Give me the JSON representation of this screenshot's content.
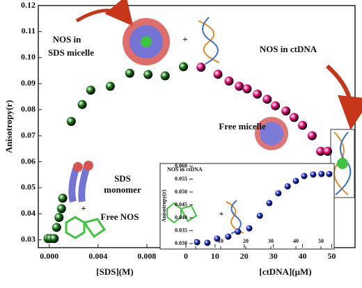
{
  "chart_data": [
    {
      "type": "scatter",
      "y_label": "Anisotropy(r)",
      "ylim": [
        0.027,
        0.12
      ],
      "yticks": [
        0.03,
        0.04,
        0.05,
        0.06,
        0.07,
        0.08,
        0.09,
        {
          "value": 0.1,
          "label": "0.10"
        },
        0.11,
        0.12
      ],
      "panels": [
        {
          "x_label": "[SDS](M)",
          "xlim": [
            -0.0009,
            0.0112
          ],
          "xticks": [
            {
              "value": 0,
              "label": "0.000"
            },
            {
              "value": 0.004,
              "label": "0.004"
            },
            {
              "value": 0.008,
              "label": "0.008"
            }
          ],
          "series": [
            {
              "color": "#1d7d1d",
              "x": [
                -0.0001,
                0.0001,
                0.0004,
                0.0006,
                0.0008,
                0.001,
                0.0011,
                0.0018,
                0.0027,
                0.0034,
                0.005,
                0.0066,
                0.0081,
                0.0095,
                0.011
              ],
              "values": [
                0.0305,
                0.0305,
                0.0305,
                0.0348,
                0.0386,
                0.042,
                0.046,
                0.0755,
                0.082,
                0.0875,
                0.089,
                0.094,
                0.0935,
                0.093,
                0.0965
              ]
            }
          ]
        },
        {
          "x_label": "[ctDNA](μM)",
          "xlim": [
            0,
            58
          ],
          "xticks": [
            0,
            10,
            20,
            30,
            40,
            50
          ],
          "series": [
            {
              "color": "#e8137c",
              "x": [
                5.2,
                11,
                14.8,
                18.3,
                21,
                24.5,
                27.9,
                30.7,
                34.3,
                37.1,
                40,
                43.3,
                46.2,
                48.6
              ],
              "values": [
                0.0963,
                0.0936,
                0.091,
                0.089,
                0.088,
                0.086,
                0.084,
                0.0815,
                0.0795,
                0.077,
                0.074,
                0.07,
                0.064,
                0.064
              ]
            }
          ]
        }
      ],
      "annotations": [
        "NOS in",
        "SDS micelle",
        "+",
        "NOS in ctDNA",
        "Free micelle",
        "SDS",
        "monomer",
        "+",
        "Free NOS"
      ]
    },
    {
      "type": "scatter",
      "title": "NOS in ctDNA",
      "y_label": "Anisotropy(r)",
      "xlim": [
        -2.5,
        54.7
      ],
      "xticks": [
        0,
        10,
        20,
        30,
        40,
        50
      ],
      "ylim": [
        0.0284,
        0.0608
      ],
      "yticks": [
        {
          "value": 0.03,
          "label": "0.030"
        },
        {
          "value": 0.035,
          "label": "0.035"
        },
        {
          "value": 0.04,
          "label": "0.040"
        },
        {
          "value": 0.045,
          "label": "0.045"
        },
        {
          "value": 0.05,
          "label": "0.050"
        },
        {
          "value": 0.055,
          "label": "0.055"
        },
        {
          "value": 0.06,
          "label": "0.060"
        }
      ],
      "series": [
        {
          "color": "#1a2ed6",
          "x": [
            0.6,
            4.7,
            8.6,
            13,
            16.9,
            21.4,
            25.6,
            29.4,
            33,
            36.7,
            40,
            43.3,
            46.9,
            50.2,
            53.3
          ],
          "values": [
            0.0305,
            0.0303,
            0.0319,
            0.0327,
            0.0346,
            0.0359,
            0.0408,
            0.0457,
            0.0495,
            0.0522,
            0.0543,
            0.0562,
            0.0568,
            0.057,
            0.057
          ]
        }
      ],
      "annotations": [
        "+"
      ]
    }
  ]
}
